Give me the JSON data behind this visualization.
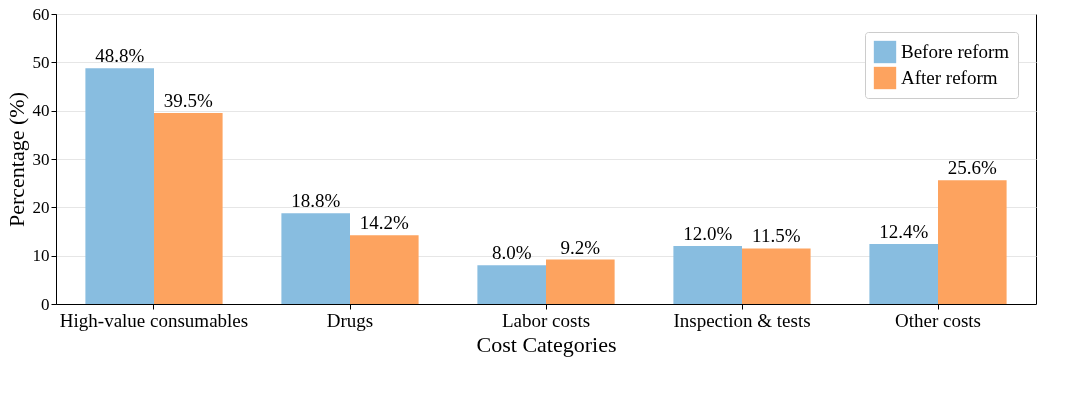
{
  "chart_data": {
    "type": "bar",
    "xlabel": "Cost Categories",
    "ylabel": "Percentage (%)",
    "categories": [
      "High-value consumables",
      "Drugs",
      "Labor costs",
      "Inspection & tests",
      "Other costs"
    ],
    "series": [
      {
        "name": "Before reform",
        "color": "#88bde0",
        "values": [
          48.8,
          18.8,
          8.0,
          12.0,
          12.4
        ],
        "value_labels": [
          "48.8%",
          "18.8%",
          "8.0%",
          "12.0%",
          "12.4%"
        ]
      },
      {
        "name": "After reform",
        "color": "#fda35f",
        "values": [
          39.5,
          14.2,
          9.2,
          11.5,
          25.6
        ],
        "value_labels": [
          "39.5%",
          "14.2%",
          "9.2%",
          "11.5%",
          "25.6%"
        ]
      }
    ],
    "ylim": [
      0,
      60
    ],
    "yticks": [
      0,
      10,
      20,
      30,
      40,
      50,
      60
    ],
    "grid": "y",
    "legend": "top right"
  }
}
